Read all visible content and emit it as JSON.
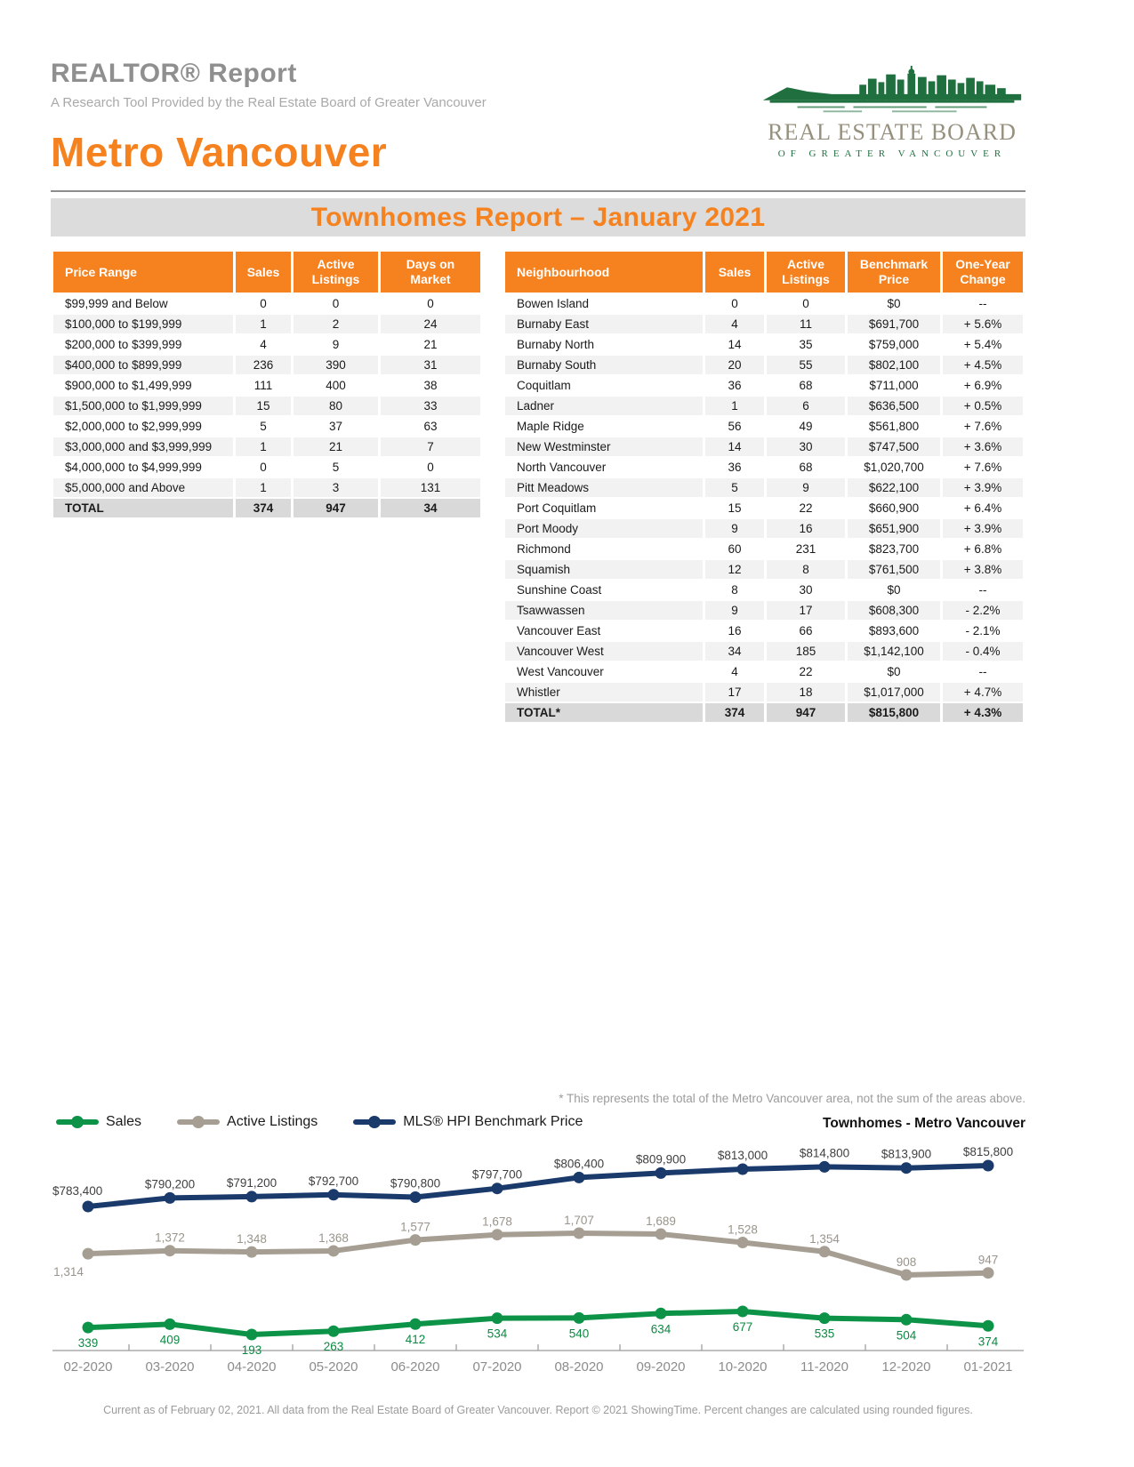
{
  "header": {
    "title": "REALTOR® Report",
    "subtitle": "A Research Tool Provided by the Real Estate Board of Greater Vancouver",
    "region": "Metro Vancouver"
  },
  "logo": {
    "line1": "REAL ESTATE BOARD",
    "line2": "OF GREATER VANCOUVER"
  },
  "banner": {
    "title": "Townhomes Report – January 2021"
  },
  "price_table": {
    "columns": [
      "Price Range",
      "Sales",
      "Active Listings",
      "Days on Market"
    ],
    "rows": [
      [
        "$99,999 and Below",
        "0",
        "0",
        "0"
      ],
      [
        "$100,000 to $199,999",
        "1",
        "2",
        "24"
      ],
      [
        "$200,000 to $399,999",
        "4",
        "9",
        "21"
      ],
      [
        "$400,000 to $899,999",
        "236",
        "390",
        "31"
      ],
      [
        "$900,000 to $1,499,999",
        "111",
        "400",
        "38"
      ],
      [
        "$1,500,000 to $1,999,999",
        "15",
        "80",
        "33"
      ],
      [
        "$2,000,000 to $2,999,999",
        "5",
        "37",
        "63"
      ],
      [
        "$3,000,000 and $3,999,999",
        "1",
        "21",
        "7"
      ],
      [
        "$4,000,000 to $4,999,999",
        "0",
        "5",
        "0"
      ],
      [
        "$5,000,000 and Above",
        "1",
        "3",
        "131"
      ]
    ],
    "total": [
      "TOTAL",
      "374",
      "947",
      "34"
    ]
  },
  "neighbourhood_table": {
    "columns": [
      "Neighbourhood",
      "Sales",
      "Active Listings",
      "Benchmark Price",
      "One-Year Change"
    ],
    "rows": [
      [
        "Bowen Island",
        "0",
        "0",
        "$0",
        "--"
      ],
      [
        "Burnaby East",
        "4",
        "11",
        "$691,700",
        "+ 5.6%"
      ],
      [
        "Burnaby North",
        "14",
        "35",
        "$759,000",
        "+ 5.4%"
      ],
      [
        "Burnaby South",
        "20",
        "55",
        "$802,100",
        "+ 4.5%"
      ],
      [
        "Coquitlam",
        "36",
        "68",
        "$711,000",
        "+ 6.9%"
      ],
      [
        "Ladner",
        "1",
        "6",
        "$636,500",
        "+ 0.5%"
      ],
      [
        "Maple Ridge",
        "56",
        "49",
        "$561,800",
        "+ 7.6%"
      ],
      [
        "New Westminster",
        "14",
        "30",
        "$747,500",
        "+ 3.6%"
      ],
      [
        "North Vancouver",
        "36",
        "68",
        "$1,020,700",
        "+ 7.6%"
      ],
      [
        "Pitt Meadows",
        "5",
        "9",
        "$622,100",
        "+ 3.9%"
      ],
      [
        "Port Coquitlam",
        "15",
        "22",
        "$660,900",
        "+ 6.4%"
      ],
      [
        "Port Moody",
        "9",
        "16",
        "$651,900",
        "+ 3.9%"
      ],
      [
        "Richmond",
        "60",
        "231",
        "$823,700",
        "+ 6.8%"
      ],
      [
        "Squamish",
        "12",
        "8",
        "$761,500",
        "+ 3.8%"
      ],
      [
        "Sunshine Coast",
        "8",
        "30",
        "$0",
        "--"
      ],
      [
        "Tsawwassen",
        "9",
        "17",
        "$608,300",
        "- 2.2%"
      ],
      [
        "Vancouver East",
        "16",
        "66",
        "$893,600",
        "- 2.1%"
      ],
      [
        "Vancouver West",
        "34",
        "185",
        "$1,142,100",
        "- 0.4%"
      ],
      [
        "West Vancouver",
        "4",
        "22",
        "$0",
        "--"
      ],
      [
        "Whistler",
        "17",
        "18",
        "$1,017,000",
        "+ 4.7%"
      ]
    ],
    "total": [
      "TOTAL*",
      "374",
      "947",
      "$815,800",
      "+ 4.3%"
    ]
  },
  "footnote": "* This represents the total of the Metro Vancouver area, not the sum of the areas above.",
  "chart_data": {
    "type": "line",
    "title": "Townhomes - Metro Vancouver",
    "legend_position": "top-left",
    "grid": false,
    "x": [
      "02-2020",
      "03-2020",
      "04-2020",
      "05-2020",
      "06-2020",
      "07-2020",
      "08-2020",
      "09-2020",
      "10-2020",
      "11-2020",
      "12-2020",
      "01-2021"
    ],
    "series": [
      {
        "name": "Sales",
        "color": "#0c9347",
        "values": [
          339,
          409,
          193,
          263,
          412,
          534,
          540,
          634,
          677,
          535,
          504,
          374
        ],
        "labels": [
          "339",
          "409",
          "193",
          "263",
          "412",
          "534",
          "540",
          "634",
          "677",
          "535",
          "504",
          "374"
        ]
      },
      {
        "name": "Active Listings",
        "color": "#a69e92",
        "values": [
          1314,
          1372,
          1348,
          1368,
          1577,
          1678,
          1707,
          1689,
          1528,
          1354,
          908,
          947
        ],
        "labels": [
          "1,314",
          "1,372",
          "1,348",
          "1,368",
          "1,577",
          "1,678",
          "1,707",
          "1,689",
          "1,528",
          "1,354",
          "908",
          "947"
        ]
      },
      {
        "name": "MLS® HPI Benchmark Price",
        "color": "#1a3a6b",
        "values": [
          783400,
          790200,
          791200,
          792700,
          790800,
          797700,
          806400,
          809900,
          813000,
          814800,
          813900,
          815800
        ],
        "labels": [
          "$783,400",
          "$790,200",
          "$791,200",
          "$792,700",
          "$790,800",
          "$797,700",
          "$806,400",
          "$809,900",
          "$813,000",
          "$814,800",
          "$813,900",
          "$815,800"
        ]
      }
    ]
  },
  "footer": "Current as of February 02, 2021. All data from the Real Estate Board of Greater Vancouver. Report © 2021 ShowingTime. Percent changes are calculated using rounded figures."
}
